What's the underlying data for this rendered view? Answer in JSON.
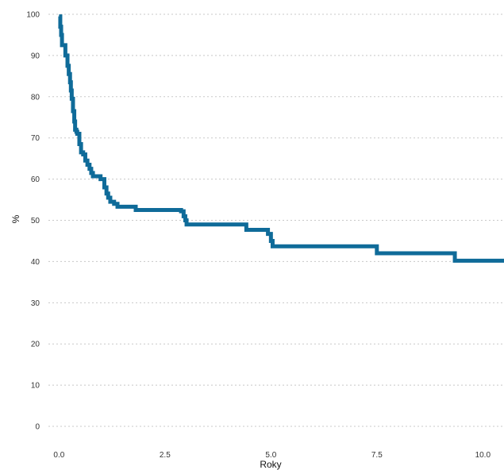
{
  "chart_data": {
    "type": "line",
    "title": "",
    "xlabel": "Roky",
    "ylabel": "%",
    "xlim": [
      -0.25,
      10.5
    ],
    "ylim": [
      -2.5,
      100
    ],
    "x_ticks": [
      0.0,
      2.5,
      5.0,
      7.5,
      10.0
    ],
    "x_tick_labels": [
      "0.0",
      "2.5",
      "5.0",
      "7.5",
      "10.0"
    ],
    "y_ticks": [
      0,
      10,
      20,
      30,
      40,
      50,
      60,
      70,
      80,
      90,
      100
    ],
    "y_tick_labels": [
      "0",
      "10",
      "20",
      "30",
      "40",
      "50",
      "60",
      "70",
      "80",
      "90",
      "100"
    ],
    "grid": {
      "horizontal": true,
      "vertical": false,
      "style": "dotted"
    },
    "line_color": "#0f6b99",
    "series": [
      {
        "step": "post",
        "x": [
          0.0,
          0.03,
          0.05,
          0.07,
          0.09,
          0.15,
          0.2,
          0.23,
          0.26,
          0.28,
          0.3,
          0.33,
          0.36,
          0.38,
          0.41,
          0.43,
          0.48,
          0.52,
          0.57,
          0.62,
          0.67,
          0.72,
          0.76,
          0.8,
          0.87,
          0.98,
          1.07,
          1.12,
          1.16,
          1.21,
          1.3,
          1.38,
          1.81,
          2.88,
          2.94,
          2.98,
          3.01,
          3.1,
          4.42,
          4.93,
          5.0,
          5.04,
          7.5,
          9.34
        ],
        "y": [
          99.5,
          97.0,
          95.0,
          92.5,
          92.5,
          90.0,
          87.5,
          85.5,
          83.5,
          81.5,
          79.5,
          76.5,
          74.0,
          72.0,
          71.5,
          71.0,
          68.5,
          66.5,
          66.0,
          64.5,
          63.5,
          62.5,
          61.5,
          60.7,
          60.7,
          60.0,
          58.0,
          56.5,
          55.5,
          54.5,
          54.0,
          53.3,
          52.5,
          52.2,
          51.0,
          50.0,
          49.0,
          49.0,
          47.7,
          46.7,
          45.0,
          43.7,
          42.0,
          40.2
        ]
      }
    ]
  }
}
